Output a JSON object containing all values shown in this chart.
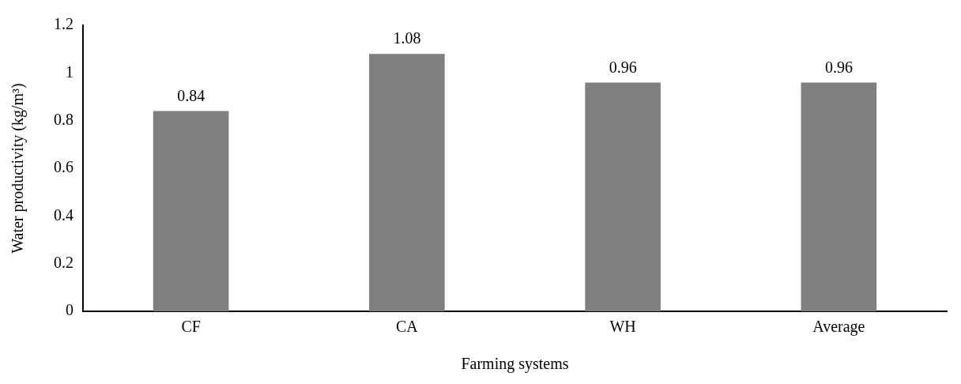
{
  "chart_data": {
    "type": "bar",
    "xlabel": "Farming systems",
    "ylabel": "Water productivity (kg/m³)",
    "categories": [
      "CF",
      "CA",
      "WH",
      "Average"
    ],
    "values": [
      0.84,
      1.08,
      0.96,
      0.96
    ],
    "color": "#7f7f7f",
    "ylim": [
      0,
      1.2
    ],
    "yticks": [
      0,
      0.2,
      0.4,
      0.6,
      0.8,
      1,
      1.2
    ],
    "grid": false,
    "legend": false,
    "data_labels": true
  }
}
